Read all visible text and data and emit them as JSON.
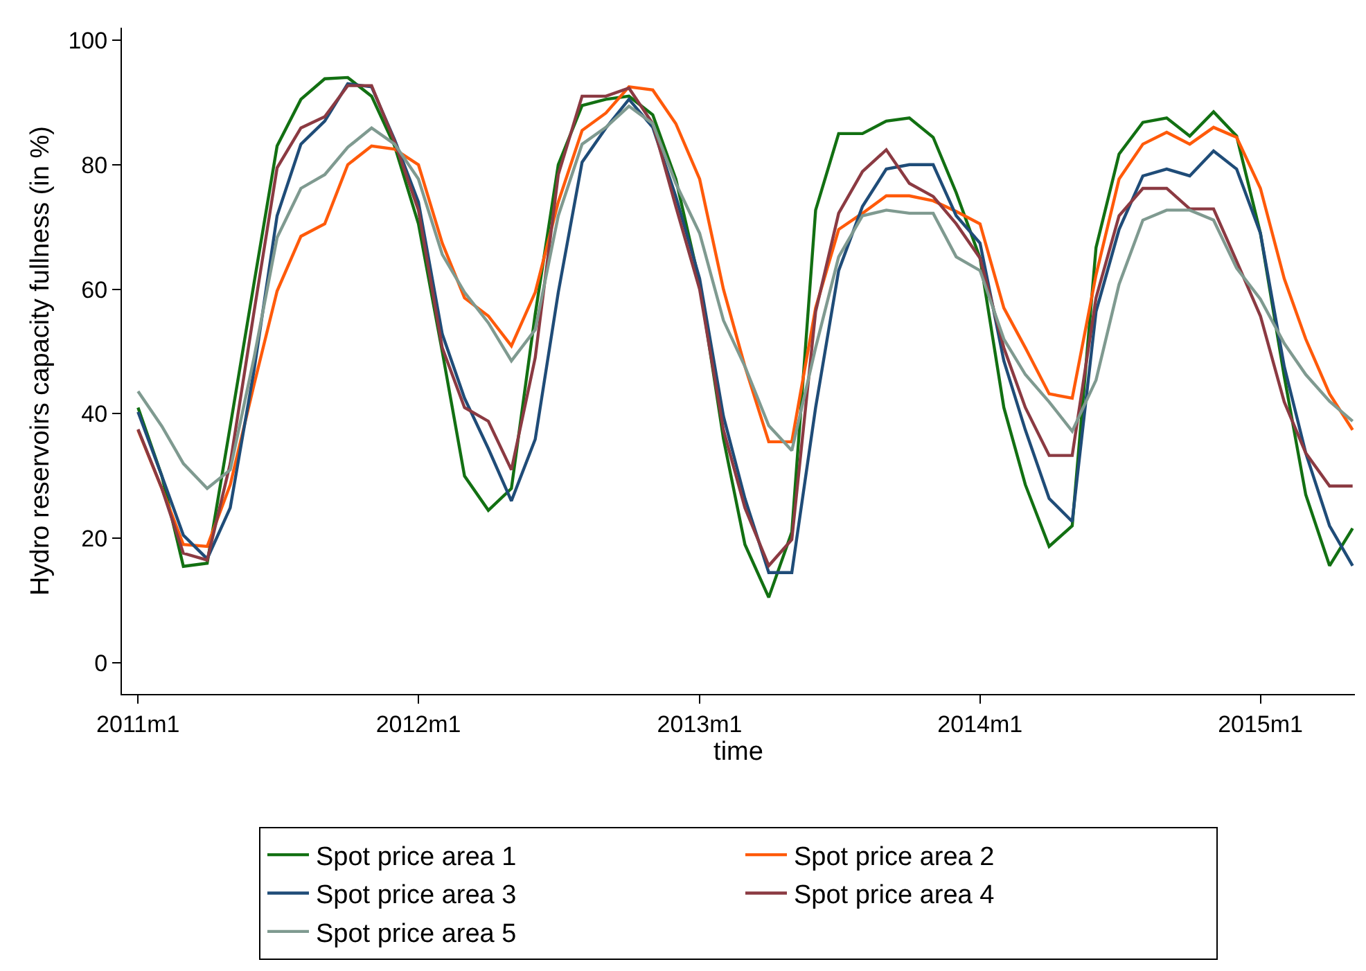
{
  "chart_data": {
    "type": "line",
    "xlabel": "time",
    "ylabel": "Hydro reservoirs capacity fullness (in %)",
    "x": [
      "2011-01",
      "2011-02",
      "2011-03",
      "2011-04",
      "2011-05",
      "2011-06",
      "2011-07",
      "2011-08",
      "2011-09",
      "2011-10",
      "2011-11",
      "2011-12",
      "2012-01",
      "2012-02",
      "2012-03",
      "2012-04",
      "2012-05",
      "2012-06",
      "2012-07",
      "2012-08",
      "2012-09",
      "2012-10",
      "2012-11",
      "2012-12",
      "2013-01",
      "2013-02",
      "2013-03",
      "2013-04",
      "2013-05",
      "2013-06",
      "2013-07",
      "2013-08",
      "2013-09",
      "2013-10",
      "2013-11",
      "2013-12",
      "2014-01",
      "2014-02",
      "2014-03",
      "2014-04",
      "2014-05",
      "2014-06",
      "2014-07",
      "2014-08",
      "2014-09",
      "2014-10",
      "2014-11",
      "2014-12",
      "2015-01",
      "2015-02",
      "2015-03",
      "2015-04",
      "2015-05"
    ],
    "xlim": [
      "2010-12-11",
      "2015-05-04"
    ],
    "xticks": [
      {
        "value": "2011-01",
        "label": "2011m1"
      },
      {
        "value": "2012-01",
        "label": "2012m1"
      },
      {
        "value": "2013-01",
        "label": "2013m1"
      },
      {
        "value": "2014-01",
        "label": "2014m1"
      },
      {
        "value": "2015-01",
        "label": "2015m1"
      }
    ],
    "ylim": [
      -5,
      102
    ],
    "yticks": [
      0,
      20,
      40,
      60,
      80,
      100
    ],
    "grid": false,
    "legend": "bottom",
    "marker": "none",
    "line_style": "solid",
    "series": [
      {
        "name": "Spot price area 1",
        "color": "#127012",
        "values": [
          41,
          30,
          15.5,
          16,
          38,
          61,
          83,
          90.5,
          93.8,
          94,
          91,
          83,
          70.5,
          50,
          30,
          24.5,
          28,
          56,
          80,
          89.5,
          90.5,
          91,
          88,
          77.7,
          61,
          36,
          19,
          10.5,
          21,
          72.7,
          85,
          85,
          87,
          87.5,
          84.4,
          75.5,
          65,
          41,
          28.6,
          18.7,
          22,
          66.7,
          81.7,
          86.8,
          87.5,
          84.6,
          88.5,
          84.6,
          69,
          46,
          27,
          15.6,
          21.6
        ]
      },
      {
        "name": "Spot price area 2",
        "color": "#ff5a0a",
        "values": [
          37.4,
          28,
          19,
          18.7,
          28.6,
          44.7,
          59.7,
          68.5,
          70.5,
          80,
          83,
          82.5,
          80,
          67.4,
          58.6,
          55.7,
          50.9,
          59.5,
          74,
          85.5,
          88.3,
          92.5,
          92,
          86.6,
          77.7,
          60,
          47.6,
          35.5,
          35.5,
          57,
          69.6,
          72.2,
          75,
          75,
          74.2,
          72.5,
          70.5,
          57,
          50.6,
          43.2,
          42.5,
          62.3,
          77.7,
          83.3,
          85.2,
          83.3,
          86,
          84.4,
          76.2,
          61.7,
          52,
          43.2,
          37.4
        ]
      },
      {
        "name": "Spot price area 3",
        "color": "#1f4c78",
        "values": [
          40.3,
          30,
          20.5,
          16.7,
          24.9,
          47,
          71.8,
          83.3,
          87,
          93,
          92.5,
          84,
          74,
          52.8,
          42.5,
          34.4,
          26,
          35.9,
          59.5,
          80.4,
          85.9,
          90.5,
          86,
          74.9,
          61.7,
          39.6,
          26.4,
          14.5,
          14.5,
          41,
          63,
          73.3,
          79.3,
          80,
          80,
          71.8,
          67.4,
          48.5,
          37.4,
          26.4,
          22.7,
          56.4,
          69.6,
          78.2,
          79.3,
          78.2,
          82.2,
          79.3,
          69,
          47.6,
          33.7,
          22,
          15.6
        ]
      },
      {
        "name": "Spot price area 4",
        "color": "#8b3a42",
        "values": [
          37.5,
          28,
          17.6,
          16.5,
          32,
          56.4,
          79.5,
          85.9,
          87.7,
          92.7,
          92.7,
          83.7,
          72.7,
          50.6,
          41,
          38.8,
          31,
          49,
          78.4,
          91,
          91,
          92.3,
          86.6,
          73.3,
          60,
          37.4,
          24.9,
          15.6,
          19.8,
          56.4,
          72.2,
          78.9,
          82.4,
          77,
          74.9,
          70.5,
          65,
          50.6,
          41,
          33.3,
          33.3,
          58.6,
          71.8,
          76.2,
          76.2,
          72.9,
          72.9,
          64.5,
          55.7,
          41.9,
          33.7,
          28.4,
          28.4
        ]
      },
      {
        "name": "Spot price area 5",
        "color": "#7f9a90",
        "values": [
          43.6,
          38,
          32,
          28,
          31,
          49,
          68.3,
          76.2,
          78.4,
          82.8,
          85.9,
          83.3,
          77.7,
          65.6,
          59.5,
          54.6,
          48.5,
          53.5,
          71.8,
          83.3,
          86,
          89.4,
          86.6,
          77,
          69,
          55,
          47.6,
          38.1,
          34.1,
          50.6,
          65.2,
          71.8,
          72.7,
          72.2,
          72.2,
          65.2,
          63,
          52,
          46.3,
          41.9,
          37.2,
          45.4,
          60.8,
          71.1,
          72.7,
          72.7,
          71.1,
          63.4,
          58.4,
          51.3,
          46.3,
          42,
          38.8
        ]
      }
    ]
  }
}
